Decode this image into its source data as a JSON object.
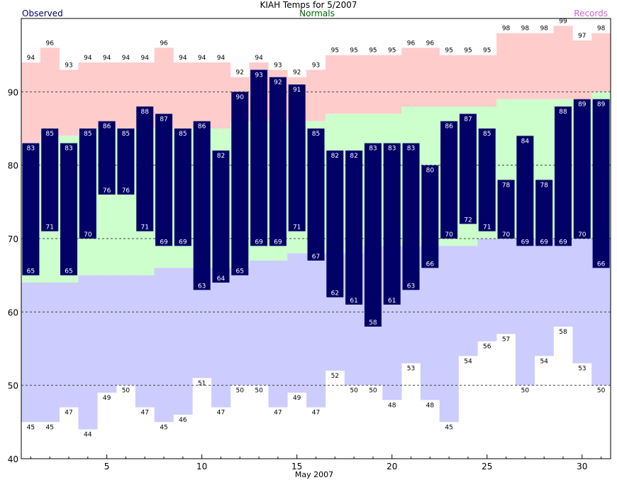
{
  "chart_data": {
    "type": "bar",
    "title": "KIAH Temps for 5/2007",
    "legend": {
      "observed": "Observed",
      "normals": "Normals",
      "records": "Records",
      "placement": "top"
    },
    "xlabel": "May 2007",
    "ylabel": "",
    "x_ticks": [
      "5",
      "10",
      "15",
      "20",
      "25",
      "30"
    ],
    "y_ticks": [
      "40",
      "50",
      "60",
      "70",
      "80",
      "90"
    ],
    "ylim": [
      40,
      100
    ],
    "xlim": [
      0.5,
      31.5
    ],
    "grid": "dashed at 50, 60, 70, 80, 90",
    "days": [
      1,
      2,
      3,
      4,
      5,
      6,
      7,
      8,
      9,
      10,
      11,
      12,
      13,
      14,
      15,
      16,
      17,
      18,
      19,
      20,
      21,
      22,
      23,
      24,
      25,
      26,
      27,
      28,
      29,
      30,
      31
    ],
    "series": [
      {
        "name": "Records",
        "kind": "record_high",
        "values": [
          94,
          96,
          93,
          94,
          94,
          94,
          94,
          96,
          94,
          94,
          94,
          92,
          94,
          93,
          92,
          93,
          95,
          95,
          95,
          95,
          96,
          96,
          95,
          95,
          95,
          98,
          98,
          98,
          99,
          97,
          98
        ]
      },
      {
        "name": "Records",
        "kind": "record_low",
        "values": [
          45,
          45,
          47,
          44,
          49,
          50,
          47,
          45,
          46,
          51,
          47,
          50,
          50,
          47,
          49,
          47,
          52,
          50,
          50,
          48,
          53,
          48,
          45,
          54,
          56,
          57,
          50,
          54,
          58,
          53,
          50
        ]
      },
      {
        "name": "Normals",
        "kind": "normal_high",
        "values": [
          83,
          84,
          84,
          85,
          85,
          85,
          85,
          85,
          85,
          85,
          85,
          86,
          86,
          86,
          86,
          86,
          87,
          87,
          87,
          87,
          88,
          88,
          88,
          88,
          88,
          89,
          89,
          89,
          89,
          89,
          90
        ]
      },
      {
        "name": "Normals",
        "kind": "normal_low",
        "values": [
          64,
          64,
          64,
          65,
          65,
          65,
          65,
          66,
          66,
          66,
          66,
          66,
          67,
          67,
          68,
          68,
          68,
          68,
          69,
          69,
          69,
          69,
          69,
          69,
          70,
          70,
          70,
          70,
          70,
          70,
          70
        ]
      },
      {
        "name": "Observed",
        "kind": "observed_high",
        "values": [
          83,
          85,
          83,
          85,
          86,
          85,
          88,
          87,
          85,
          86,
          82,
          90,
          93,
          92,
          91,
          85,
          82,
          82,
          83,
          83,
          83,
          80,
          86,
          87,
          85,
          78,
          84,
          78,
          88,
          89,
          89
        ]
      },
      {
        "name": "Observed",
        "kind": "observed_low",
        "values": [
          65,
          71,
          65,
          70,
          76,
          76,
          71,
          69,
          69,
          63,
          64,
          65,
          69,
          69,
          71,
          67,
          62,
          61,
          58,
          61,
          63,
          66,
          70,
          72,
          71,
          70,
          69,
          69,
          69,
          70,
          66
        ]
      }
    ],
    "colors": {
      "record_band": "#ffcccc",
      "normal_band": "#ccffcc",
      "below_normal": "#ccccff",
      "observed": "#000066",
      "grid": "#444444",
      "observed_label": "#000066",
      "normals_label": "#006600",
      "records_label": "#cc66cc"
    }
  }
}
